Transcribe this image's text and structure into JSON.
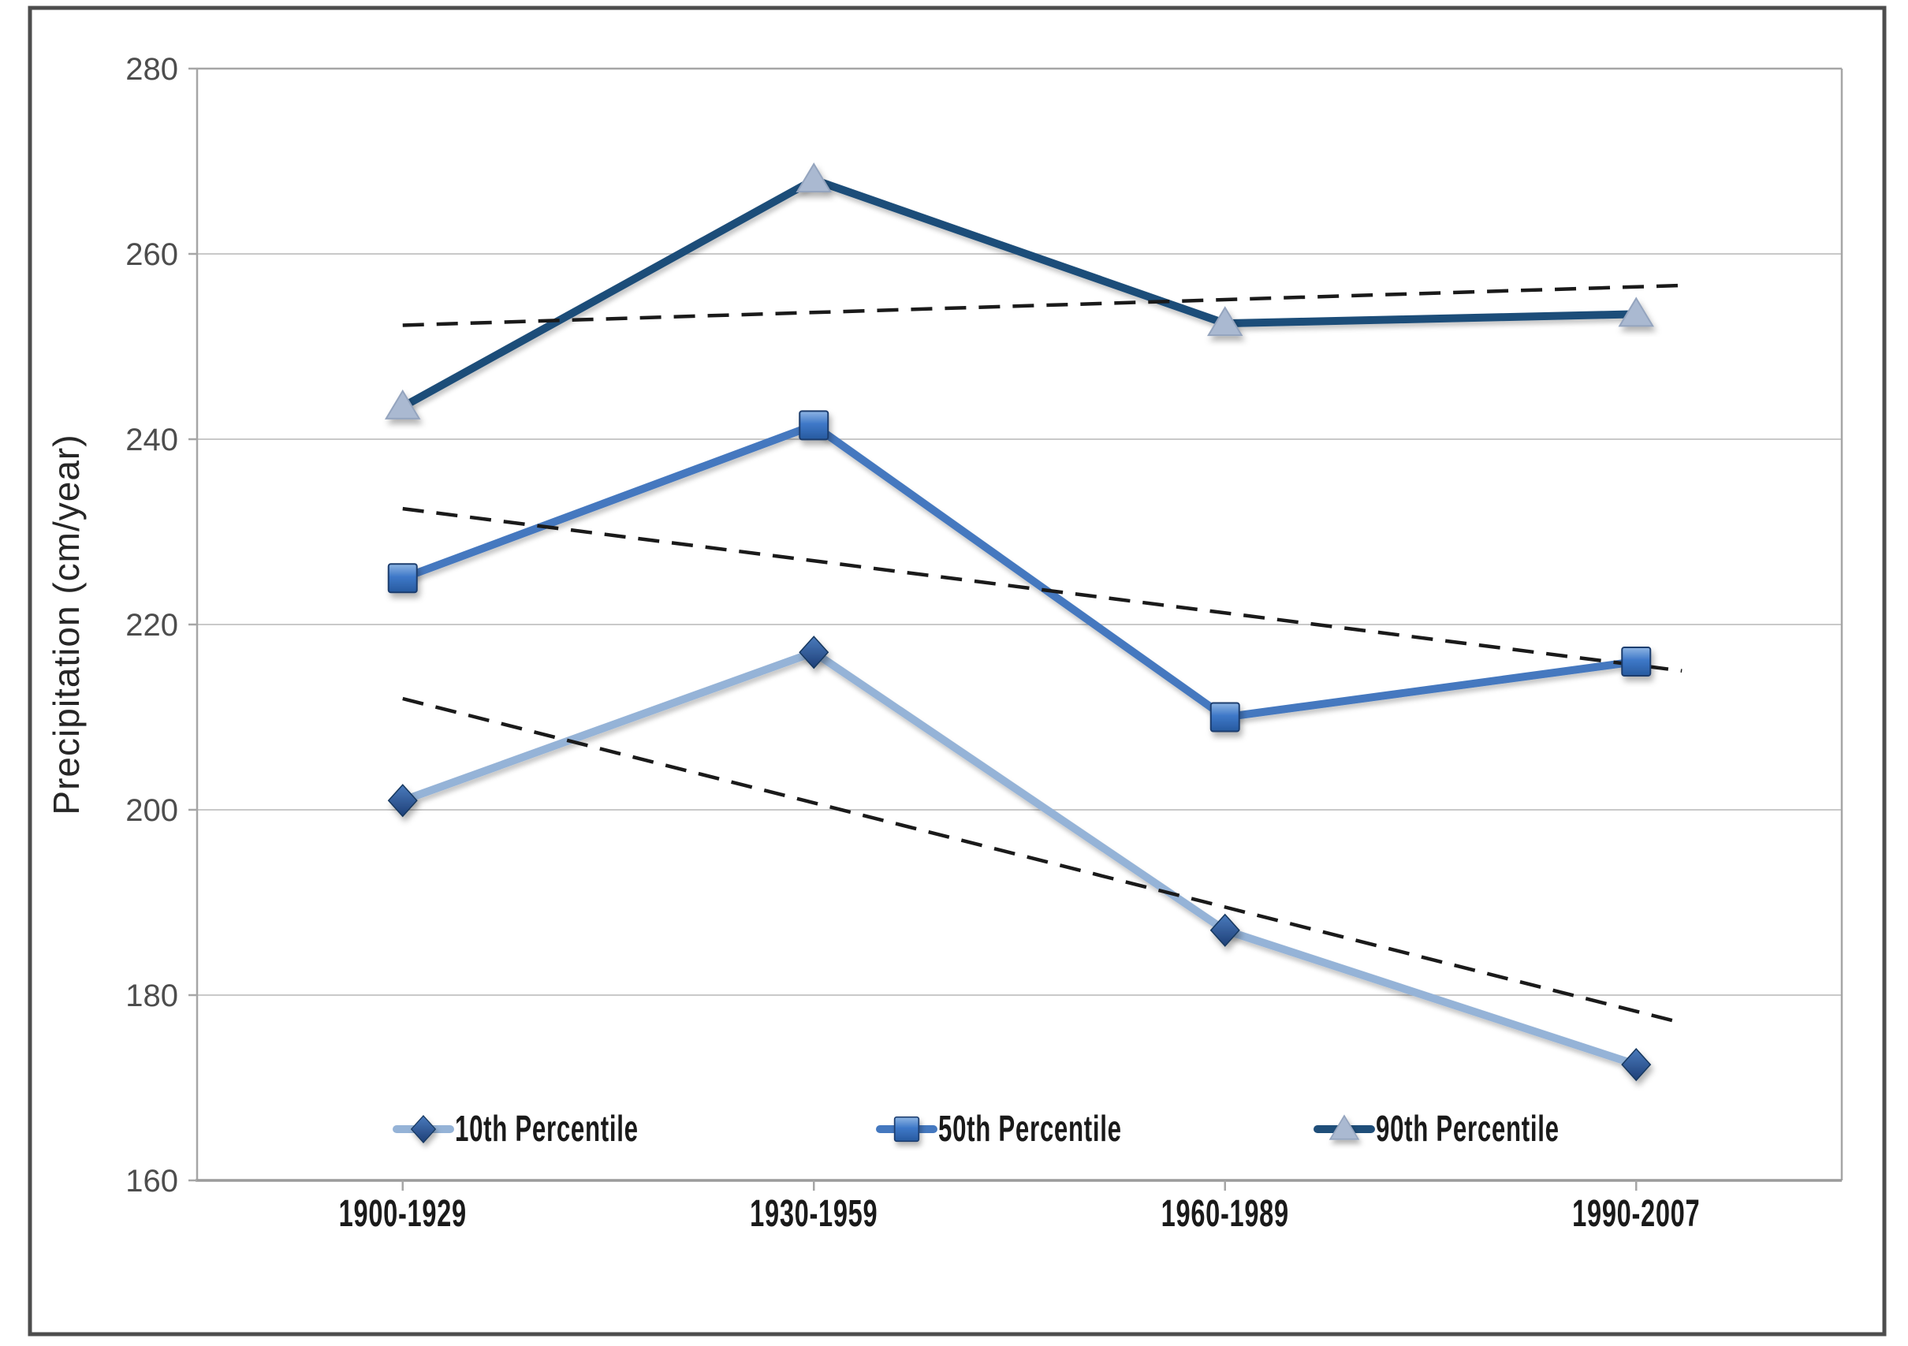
{
  "figure": {
    "frame_color": "#4d4d4d",
    "background": "#ffffff"
  },
  "chart_data": {
    "type": "line",
    "title": "",
    "xlabel": "",
    "ylabel": "Precipitation (cm/year)",
    "ylim": [
      160,
      280
    ],
    "ytick_step": 20,
    "yticks": [
      160,
      180,
      200,
      220,
      240,
      260,
      280
    ],
    "categories": [
      "1900-1929",
      "1930-1959",
      "1960-1989",
      "1990-2007"
    ],
    "grid": "horizontal",
    "legend_position": "bottom-inside",
    "series": [
      {
        "name": "10th Percentile",
        "marker": "diamond",
        "values": [
          201,
          217,
          187,
          172.5
        ],
        "line_color": "#95b3d7",
        "marker_color": "#2a5193"
      },
      {
        "name": "50th Percentile",
        "marker": "square",
        "values": [
          225,
          241.5,
          210,
          216
        ],
        "line_color": "#4478bf",
        "marker_color": "#3a70ba"
      },
      {
        "name": "90th Percentile",
        "marker": "triangle",
        "values": [
          243.5,
          268,
          252.5,
          253.5
        ],
        "line_color": "#1f4e79",
        "marker_color": "#aab9d1"
      }
    ],
    "trendlines": [
      {
        "series": "10th Percentile",
        "start_value": 212,
        "end_value": 177,
        "style": "dashed",
        "color": "#1a1a1a"
      },
      {
        "series": "50th Percentile",
        "start_value": 232.5,
        "end_value": 215,
        "style": "dashed",
        "color": "#1a1a1a"
      },
      {
        "series": "90th Percentile",
        "start_value": 252.3,
        "end_value": 256.6,
        "style": "dashed",
        "color": "#1a1a1a"
      }
    ],
    "colors": {
      "gridline": "#c9c9c9",
      "axis_line": "#a6a6a6",
      "tick_label": "#4d4d4d",
      "category_label": "#1a1a1a",
      "axis_title": "#262626"
    }
  }
}
